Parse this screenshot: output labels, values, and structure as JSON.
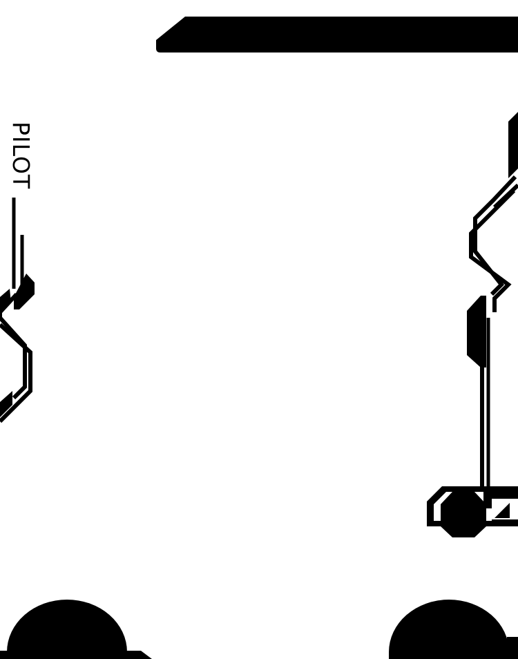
{
  "hud": {
    "pilot_label": "PILOT"
  },
  "colors": {
    "ink": "#000000",
    "paper": "#ffffff"
  },
  "icons": {
    "portrait_badge": "octagon-icon",
    "rank_marker": "triangle-icon"
  }
}
